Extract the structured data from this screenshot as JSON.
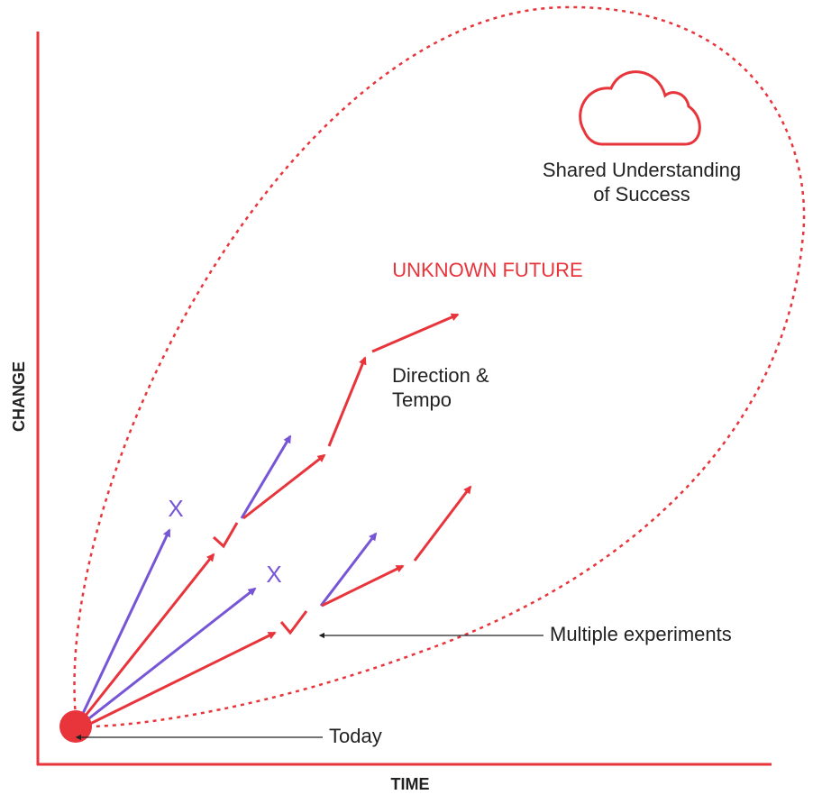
{
  "axes": {
    "y_label": "CHANGE",
    "x_label": "TIME"
  },
  "goal": {
    "lines": [
      "Shared Understanding",
      "of Success"
    ]
  },
  "region": {
    "label": "UNKNOWN FUTURE"
  },
  "path_label": {
    "lines": [
      "Direction &",
      "Tempo"
    ]
  },
  "failed_marks": [
    "X",
    "X"
  ],
  "callouts": {
    "experiments": "Multiple experiments",
    "today": "Today"
  }
}
